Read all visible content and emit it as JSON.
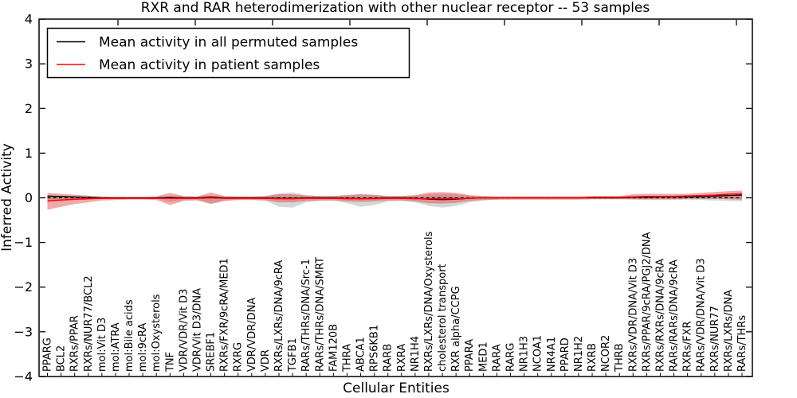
{
  "figure": {
    "title": "RXR and RAR heterodimerization with other nuclear receptor -- 53 samples",
    "xlabel": "Cellular Entities",
    "ylabel": "Inferred Activity",
    "background": "#ffffff"
  },
  "legend": {
    "position": "upper left",
    "entries": [
      {
        "label": "Mean activity in all permuted samples",
        "color": "#000000"
      },
      {
        "label": "Mean activity in patient samples",
        "color": "#ff0000"
      }
    ]
  },
  "chart_data": {
    "type": "line",
    "title": "RXR and RAR heterodimerization with other nuclear receptor -- 53 samples",
    "xlabel": "Cellular Entities",
    "ylabel": "Inferred Activity",
    "ylim": [
      -4,
      4
    ],
    "yticks": [
      4,
      3,
      2,
      1,
      0,
      -1,
      -2,
      -3,
      -4
    ],
    "grid": false,
    "legend_position": "upper left",
    "categories": [
      "PPARG",
      "BCL2",
      "RXRs/PPAR",
      "RXRs/NUR77/BCL2",
      "mol:Vit D3",
      "mol:ATRA",
      "mol:Bile acids",
      "mol:9cRA",
      "mol:Oxysterols",
      "TNF",
      "VDR/VDR/Vit D3",
      "VDR/Vit D3/DNA",
      "SREBF1",
      "RXRs/FXR/9cRA/MED1",
      "RXRG",
      "VDR/VDR/DNA",
      "VDR",
      "RXRs/LXRs/DNA/9cRA",
      "TGFB1",
      "RARs/THRs/DNA/Src-1",
      "RARs/THRs/DNA/SMRT",
      "FAM120B",
      "THRA",
      "ABCA1",
      "RPS6KB1",
      "RARB",
      "RXRA",
      "NR1H4",
      "RXRs/LXRs/DNA/Oxysterols",
      "cholesterol transport",
      "RXR alpha/CCPG",
      "PPARA",
      "MED1",
      "RARA",
      "RARG",
      "NR1H3",
      "NCOA1",
      "NR4A1",
      "PPARD",
      "NR1H2",
      "RXRB",
      "NCOR2",
      "THRB",
      "RXRs/VDR/DNA/Vit D3",
      "RXRs/PPAR/9cRA/PGJ2/DNA",
      "RXRs/RXRs/DNA/9cRA",
      "RARs/RARs/DNA/9cRA",
      "RXRs/FXR",
      "RARs/VDR/DNA/Vit D3",
      "RXRs/NUR77",
      "RXRs/LXRs/DNA",
      "RARs/THRs"
    ],
    "series": [
      {
        "name": "Mean activity in all permuted samples",
        "color": "#000000",
        "style": "solid",
        "values": [
          0.04,
          0.03,
          0.02,
          0.01,
          0,
          0,
          0,
          0,
          0,
          0.01,
          0,
          0,
          0.02,
          0,
          0,
          0,
          0,
          -0.01,
          -0.01,
          0,
          0,
          0,
          -0.01,
          -0.02,
          -0.01,
          0,
          0,
          -0.01,
          -0.03,
          -0.04,
          -0.03,
          -0.01,
          0,
          0,
          0,
          0,
          0,
          0,
          0,
          0,
          0,
          0,
          0,
          0.01,
          0.01,
          0.02,
          0.02,
          0.02,
          0.03,
          0.04,
          0.05,
          0.06
        ]
      },
      {
        "name": "Mean activity in patient samples",
        "color": "#ff0000",
        "style": "solid",
        "values": [
          -0.07,
          -0.05,
          -0.03,
          -0.02,
          -0.01,
          -0.01,
          -0.01,
          -0.01,
          -0.01,
          -0.01,
          -0.01,
          -0.01,
          0,
          -0.01,
          -0.01,
          -0.01,
          -0.01,
          -0.02,
          -0.02,
          -0.01,
          -0.01,
          -0.01,
          -0.02,
          -0.02,
          -0.02,
          -0.01,
          -0.01,
          -0.02,
          -0.02,
          -0.02,
          -0.02,
          -0.01,
          0,
          0,
          0,
          0,
          0,
          0,
          0,
          0,
          0.01,
          0.01,
          0.01,
          0.02,
          0.03,
          0.03,
          0.03,
          0.04,
          0.05,
          0.06,
          0.08,
          0.09
        ]
      },
      {
        "name": "zero-reference",
        "color": "#000000",
        "style": "dashed",
        "values": [
          0,
          0,
          0,
          0,
          0,
          0,
          0,
          0,
          0,
          0,
          0,
          0,
          0,
          0,
          0,
          0,
          0,
          0,
          0,
          0,
          0,
          0,
          0,
          0,
          0,
          0,
          0,
          0,
          0,
          0,
          0,
          0,
          0,
          0,
          0,
          0,
          0,
          0,
          0,
          0,
          0,
          0,
          0,
          0,
          0,
          0,
          0,
          0,
          0,
          0,
          0,
          0
        ]
      }
    ],
    "bands": [
      {
        "name": "permuted-samples-std-band",
        "color": "#999999",
        "opacity": 0.4,
        "upper": [
          0.05,
          0.04,
          0.03,
          0.02,
          0.01,
          0.01,
          0.01,
          0.01,
          0.01,
          0.03,
          0.02,
          0.02,
          0.04,
          0.02,
          0.02,
          0.02,
          0.03,
          0.1,
          0.12,
          0.06,
          0.04,
          0.04,
          0.06,
          0.08,
          0.06,
          0.04,
          0.04,
          0.05,
          0.08,
          0.09,
          0.08,
          0.05,
          0.03,
          0.02,
          0.02,
          0.02,
          0.02,
          0.02,
          0.02,
          0.02,
          0.02,
          0.02,
          0.02,
          0.03,
          0.03,
          0.03,
          0.03,
          0.03,
          0.04,
          0.05,
          0.06,
          0.06
        ],
        "lower": [
          -0.09,
          -0.07,
          -0.05,
          -0.04,
          -0.02,
          -0.02,
          -0.02,
          -0.02,
          -0.02,
          -0.09,
          -0.05,
          -0.04,
          -0.12,
          -0.06,
          -0.04,
          -0.04,
          -0.06,
          -0.2,
          -0.22,
          -0.1,
          -0.07,
          -0.06,
          -0.12,
          -0.2,
          -0.16,
          -0.08,
          -0.07,
          -0.1,
          -0.18,
          -0.22,
          -0.18,
          -0.1,
          -0.06,
          -0.04,
          -0.03,
          -0.03,
          -0.03,
          -0.03,
          -0.03,
          -0.03,
          -0.03,
          -0.03,
          -0.03,
          -0.04,
          -0.05,
          -0.05,
          -0.05,
          -0.04,
          -0.05,
          -0.06,
          -0.07,
          -0.08
        ]
      },
      {
        "name": "patient-samples-std-band",
        "color": "#dd3333",
        "opacity": 0.42,
        "upper": [
          0.11,
          0.09,
          0.07,
          0.05,
          0.03,
          0.02,
          0.02,
          0.02,
          0.03,
          0.11,
          0.04,
          0.03,
          0.12,
          0.04,
          0.03,
          0.03,
          0.04,
          0.08,
          0.08,
          0.05,
          0.04,
          0.04,
          0.06,
          0.08,
          0.07,
          0.04,
          0.04,
          0.06,
          0.12,
          0.13,
          0.11,
          0.06,
          0.04,
          0.03,
          0.03,
          0.03,
          0.03,
          0.03,
          0.03,
          0.03,
          0.04,
          0.04,
          0.04,
          0.08,
          0.09,
          0.09,
          0.09,
          0.09,
          0.11,
          0.13,
          0.15,
          0.16
        ],
        "lower": [
          -0.27,
          -0.2,
          -0.14,
          -0.1,
          -0.06,
          -0.05,
          -0.04,
          -0.04,
          -0.05,
          -0.16,
          -0.07,
          -0.06,
          -0.14,
          -0.07,
          -0.05,
          -0.05,
          -0.06,
          -0.1,
          -0.1,
          -0.07,
          -0.06,
          -0.06,
          -0.08,
          -0.09,
          -0.08,
          -0.06,
          -0.06,
          -0.08,
          -0.12,
          -0.13,
          -0.11,
          -0.07,
          -0.05,
          -0.04,
          -0.04,
          -0.04,
          -0.04,
          -0.04,
          -0.04,
          -0.04,
          -0.03,
          -0.03,
          -0.03,
          -0.03,
          -0.03,
          -0.03,
          -0.03,
          -0.02,
          -0.02,
          -0.02,
          -0.03,
          -0.04
        ]
      }
    ]
  }
}
